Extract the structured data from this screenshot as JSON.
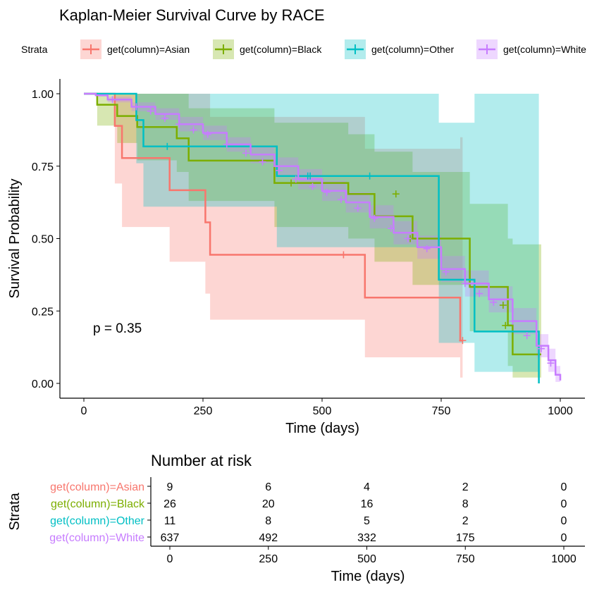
{
  "chart_data": [
    {
      "type": "line",
      "subtype": "kaplan-meier",
      "title": "Kaplan-Meier Survival Curve by RACE",
      "xlabel": "Time (days)",
      "ylabel": "Survival Probability",
      "xlim": [
        0,
        1000
      ],
      "ylim": [
        0,
        1
      ],
      "x_ticks": [
        0,
        250,
        500,
        750,
        1000
      ],
      "x_tick_labels": [
        "0",
        "250",
        "500",
        "750",
        "1000"
      ],
      "y_ticks": [
        0,
        0.25,
        0.5,
        0.75,
        1
      ],
      "y_tick_labels": [
        "0.00",
        "0.25",
        "0.50",
        "0.75",
        "1.00"
      ],
      "grid": false,
      "legend_title": "Strata",
      "legend_position": "top",
      "annotation": "p = 0.35",
      "series": [
        {
          "name": "get(column)=Asian",
          "color": "#F8766D",
          "x": [
            0,
            65,
            80,
            180,
            255,
            265,
            590,
            790
          ],
          "y": [
            1.0,
            0.889,
            0.778,
            0.667,
            0.556,
            0.444,
            0.296,
            0.148
          ],
          "ci_lower": [
            1.0,
            0.69,
            0.54,
            0.42,
            0.31,
            0.22,
            0.09,
            0.02
          ],
          "ci_upper": [
            1.0,
            1.0,
            1.0,
            1.0,
            1.0,
            0.92,
            0.81,
            0.85
          ],
          "x_end": 795,
          "censor_x": [
            545,
            795
          ],
          "censor_y": [
            0.444,
            0.148
          ]
        },
        {
          "name": "get(column)=Black",
          "color": "#7CAE00",
          "x": [
            0,
            28,
            70,
            112,
            195,
            220,
            400,
            555,
            610,
            690,
            810,
            890,
            900
          ],
          "y": [
            1.0,
            0.962,
            0.923,
            0.885,
            0.846,
            0.769,
            0.692,
            0.654,
            0.577,
            0.5,
            0.333,
            0.2,
            0.1
          ],
          "ci_lower": [
            1.0,
            0.89,
            0.83,
            0.77,
            0.73,
            0.63,
            0.54,
            0.5,
            0.42,
            0.34,
            0.18,
            0.06,
            0.02
          ],
          "ci_upper": [
            1.0,
            1.0,
            1.0,
            1.0,
            1.0,
            0.95,
            0.9,
            0.86,
            0.8,
            0.73,
            0.62,
            0.5,
            0.48
          ],
          "x_end": 960,
          "censor_x": [
            435,
            655,
            685,
            880,
            885
          ],
          "censor_y": [
            0.692,
            0.654,
            0.5,
            0.27,
            0.2
          ]
        },
        {
          "name": "get(column)=Other",
          "color": "#00BFC4",
          "x": [
            0,
            110,
            125,
            405,
            745,
            820,
            955
          ],
          "y": [
            1.0,
            0.909,
            0.818,
            0.716,
            0.358,
            0.179,
            0.0
          ],
          "ci_lower": [
            1.0,
            0.76,
            0.61,
            0.47,
            0.14,
            0.04,
            0.0
          ],
          "ci_upper": [
            1.0,
            1.0,
            1.0,
            1.0,
            0.9,
            1.0,
            1.0
          ],
          "x_end": 955,
          "censor_x": [
            175,
            470,
            475,
            600
          ],
          "censor_y": [
            0.818,
            0.716,
            0.716,
            0.716
          ]
        },
        {
          "name": "get(column)=White",
          "color": "#C77CFF",
          "x": [
            0,
            25,
            50,
            100,
            150,
            200,
            250,
            300,
            350,
            400,
            450,
            500,
            550,
            600,
            650,
            700,
            750,
            800,
            850,
            900,
            950,
            975,
            990,
            1000
          ],
          "y": [
            1.0,
            0.995,
            0.98,
            0.955,
            0.93,
            0.895,
            0.865,
            0.825,
            0.79,
            0.75,
            0.705,
            0.665,
            0.625,
            0.575,
            0.52,
            0.47,
            0.395,
            0.345,
            0.29,
            0.215,
            0.13,
            0.08,
            0.03,
            0.01
          ],
          "ci_lower": [
            1.0,
            0.99,
            0.97,
            0.94,
            0.91,
            0.87,
            0.84,
            0.8,
            0.76,
            0.72,
            0.67,
            0.63,
            0.59,
            0.535,
            0.48,
            0.43,
            0.35,
            0.3,
            0.245,
            0.17,
            0.09,
            0.04,
            0.005,
            0.0
          ],
          "ci_upper": [
            1.0,
            1.0,
            0.99,
            0.97,
            0.95,
            0.92,
            0.89,
            0.85,
            0.82,
            0.78,
            0.74,
            0.7,
            0.66,
            0.615,
            0.56,
            0.51,
            0.44,
            0.39,
            0.335,
            0.26,
            0.17,
            0.12,
            0.06,
            0.04
          ],
          "x_end": 1000,
          "censor_x": [
            60,
            110,
            140,
            170,
            200,
            230,
            260,
            300,
            340,
            375,
            410,
            445,
            480,
            510,
            540,
            575,
            610,
            645,
            680,
            720,
            760,
            800,
            830,
            860,
            900,
            930,
            960,
            980
          ],
          "censor_y": [
            0.98,
            0.955,
            0.94,
            0.915,
            0.895,
            0.875,
            0.86,
            0.825,
            0.795,
            0.765,
            0.735,
            0.705,
            0.68,
            0.66,
            0.635,
            0.605,
            0.57,
            0.535,
            0.5,
            0.465,
            0.385,
            0.345,
            0.31,
            0.28,
            0.215,
            0.165,
            0.12,
            0.07
          ]
        }
      ]
    },
    {
      "type": "table",
      "title": "Number at risk",
      "xlabel": "Time (days)",
      "ylabel": "Strata",
      "xlim": [
        0,
        1000
      ],
      "x_ticks": [
        0,
        250,
        500,
        750,
        1000
      ],
      "x_tick_labels": [
        "0",
        "250",
        "500",
        "750",
        "1000"
      ],
      "rows": [
        {
          "name": "get(column)=Asian",
          "color": "#F8766D",
          "values": [
            "9",
            "6",
            "4",
            "2",
            "0"
          ]
        },
        {
          "name": "get(column)=Black",
          "color": "#7CAE00",
          "values": [
            "26",
            "20",
            "16",
            "8",
            "0"
          ]
        },
        {
          "name": "get(column)=Other",
          "color": "#00BFC4",
          "values": [
            "11",
            "8",
            "5",
            "2",
            "0"
          ]
        },
        {
          "name": "get(column)=White",
          "color": "#C77CFF",
          "values": [
            "637",
            "492",
            "332",
            "175",
            "0"
          ]
        }
      ]
    }
  ]
}
